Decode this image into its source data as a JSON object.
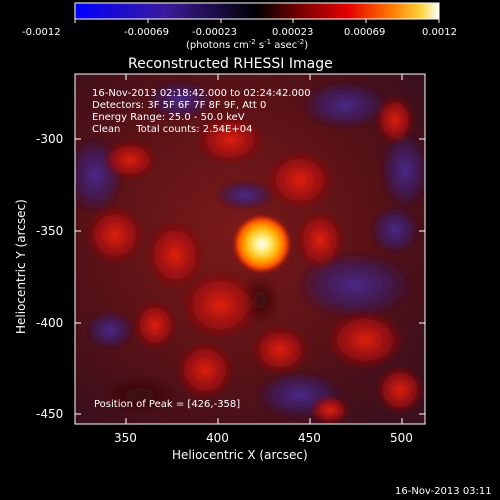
{
  "colorbar": {
    "tick_labels": [
      "-0.0012",
      "-0.00069",
      "-0.00023",
      "0.00023",
      "0.00069",
      "0.0012"
    ],
    "units_prefix": "(photons cm",
    "units_exp1": "-2",
    "units_mid": " s",
    "units_exp2": "-1",
    "units_mid2": " asec",
    "units_exp3": "-2",
    "units_suffix": ")"
  },
  "title": "Reconstructed RHESSI Image",
  "info": {
    "line1": "16-Nov-2013 02:18:42.000 to 02:24:42.000",
    "line2": "Detectors: 3F 5F 6F 7F 8F 9F, Att 0",
    "line3": "Energy Range: 25.0 - 50.0 keV",
    "line4": "Clean     Total counts: 2.54E+04"
  },
  "peak_label": "Position of Peak = [426,-358]",
  "axes": {
    "xlabel": "Heliocentric X (arcsec)",
    "ylabel": "Heliocentric Y (arcsec)",
    "xticks": [
      "350",
      "400",
      "450",
      "500"
    ],
    "yticks": [
      "-300",
      "-350",
      "-400",
      "-450"
    ]
  },
  "footer_timestamp": "16-Nov-2013 03:11"
}
